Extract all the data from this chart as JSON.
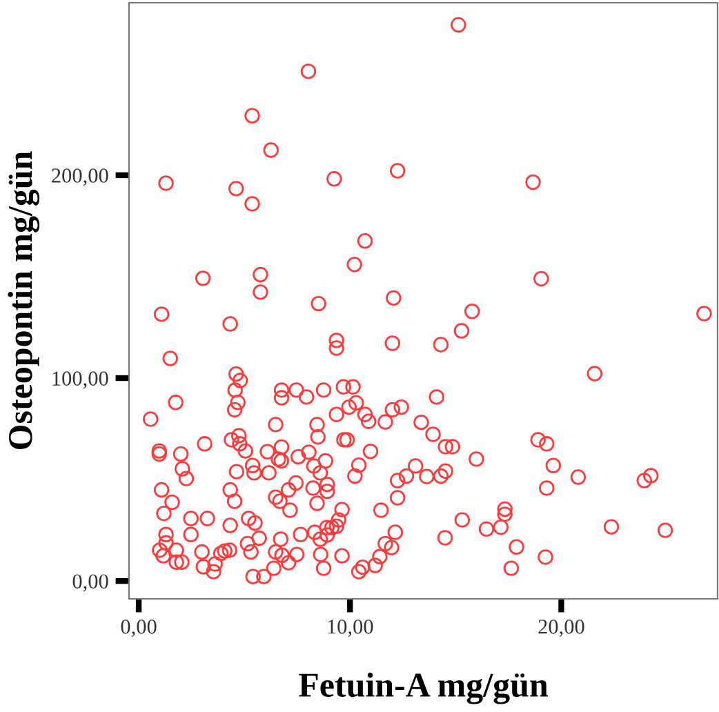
{
  "chart_data": {
    "type": "scatter",
    "xlabel": "Fetuin-A mg/gün",
    "ylabel": "Osteopontin mg/gün",
    "xlim": [
      -0.46,
      27.4
    ],
    "ylim": [
      -8.8,
      285
    ],
    "xticks": [
      {
        "value": 0,
        "label": "0,00"
      },
      {
        "value": 10,
        "label": "10,00"
      },
      {
        "value": 20,
        "label": "20,00"
      }
    ],
    "yticks": [
      {
        "value": 0,
        "label": "0,00"
      },
      {
        "value": 100,
        "label": "100,00"
      },
      {
        "value": 200,
        "label": "200,00"
      }
    ],
    "grid": false,
    "marker": "circle",
    "series": [
      {
        "color": "#ff3b3b",
        "x": [
          15.13,
          8.03,
          5.37,
          6.26,
          1.29,
          4.61,
          5.37,
          9.25,
          12.25,
          10.71,
          10.21,
          3.04,
          5.76,
          5.76,
          12.06,
          8.51,
          18.66,
          19.05,
          1.08,
          4.33,
          9.36,
          9.36,
          12.01,
          1.49,
          4.61,
          4.8,
          4.56,
          1.75,
          4.69,
          4.54,
          0.56,
          6.76,
          7.46,
          6.76,
          7.94,
          8.75,
          9.69,
          10.14,
          10.29,
          9.95,
          9.36,
          10.71,
          10.88,
          11.67,
          12.01,
          12.43,
          13.37,
          6.48,
          8.44,
          8.48,
          4.74,
          4.39,
          4.78,
          5.05,
          3.12,
          0.97,
          0.97,
          1.99,
          2.06,
          2.25,
          6.09,
          6.76,
          6.61,
          6.75,
          7.55,
          8.05,
          8.84,
          9.71,
          9.86,
          10.97,
          10.42,
          10.23,
          5.39,
          5.46,
          6.16,
          4.63,
          8.29,
          8.59,
          1.08,
          1.58,
          1.19,
          4.33,
          4.54,
          7.44,
          7.09,
          6.48,
          6.68,
          7.16,
          8.25,
          8.92,
          8.92,
          8.44,
          9.62,
          12.25,
          12.67,
          13.1,
          12.25,
          11.47,
          2.47,
          3.25,
          5.2,
          5.5,
          4.33,
          2.47,
          1.29,
          1.29,
          0.99,
          1.16,
          1.78,
          1.78,
          2.04,
          2.99,
          3.06,
          3.61,
          3.54,
          3.89,
          4.07,
          4.3,
          5.15,
          5.31,
          5.7,
          5.41,
          5.92,
          6.39,
          6.48,
          6.72,
          6.78,
          7.09,
          7.48,
          7.66,
          8.33,
          8.59,
          8.9,
          8.92,
          9.14,
          9.36,
          9.46,
          8.61,
          8.75,
          9.62,
          10.42,
          10.6,
          11.19,
          11.41,
          11.67,
          11.97,
          12.14,
          15.78,
          15.28,
          14.3,
          26.76,
          21.58,
          14.1,
          13.93,
          14.52,
          14.85,
          15.98,
          13.63,
          14.3,
          14.52,
          18.9,
          19.31,
          19.62,
          20.8,
          19.31,
          23.93,
          24.24,
          17.33,
          17.33,
          17.14,
          16.46,
          15.31,
          14.5,
          17.88,
          17.63,
          19.25,
          22.37,
          24.92
        ],
        "values": [
          274.1,
          251.2,
          229.3,
          212.4,
          196.1,
          193.4,
          185.9,
          198.2,
          202.2,
          167.6,
          156.0,
          149.2,
          151.0,
          142.4,
          139.5,
          136.7,
          196.6,
          149.0,
          131.5,
          126.7,
          118.6,
          114.8,
          117.2,
          109.7,
          102.0,
          98.8,
          94.1,
          88.0,
          88.0,
          84.4,
          79.8,
          94.1,
          94.1,
          90.3,
          90.7,
          94.1,
          95.7,
          95.7,
          87.8,
          85.7,
          82.1,
          82.1,
          78.7,
          78.4,
          84.4,
          85.7,
          78.2,
          77.1,
          77.1,
          71.0,
          71.6,
          69.6,
          67.6,
          64.1,
          67.6,
          64.1,
          62.6,
          62.6,
          55.3,
          50.5,
          63.7,
          66.0,
          60.1,
          59.2,
          61.2,
          63.5,
          59.2,
          69.6,
          69.6,
          63.9,
          57.1,
          51.7,
          56.9,
          53.3,
          53.3,
          53.9,
          56.7,
          53.3,
          44.9,
          38.8,
          33.3,
          44.9,
          39.3,
          48.3,
          44.9,
          41.3,
          39.3,
          34.9,
          45.8,
          47.6,
          44.2,
          38.3,
          35.2,
          49.5,
          51.7,
          56.7,
          41.0,
          34.9,
          30.8,
          30.8,
          30.8,
          28.6,
          27.4,
          22.9,
          22.9,
          18.8,
          15.2,
          12.4,
          15.2,
          9.3,
          9.3,
          14.3,
          7.0,
          8.4,
          4.6,
          13.6,
          14.8,
          15.2,
          18.4,
          14.3,
          21.1,
          2.2,
          2.2,
          6.3,
          14.3,
          20.6,
          12.7,
          9.0,
          13.1,
          22.9,
          24.0,
          20.6,
          26.3,
          22.7,
          26.3,
          27.0,
          30.1,
          13.1,
          6.3,
          12.4,
          4.6,
          6.8,
          7.7,
          12.0,
          18.4,
          16.5,
          24.0,
          132.9,
          123.3,
          116.5,
          131.8,
          102.2,
          90.7,
          72.3,
          66.2,
          66.2,
          60.1,
          51.5,
          51.7,
          54.2,
          69.6,
          67.6,
          56.9,
          51.2,
          45.8,
          49.5,
          51.9,
          35.4,
          32.9,
          26.5,
          25.6,
          30.1,
          21.3,
          16.8,
          6.3,
          11.8,
          26.7,
          25.0
        ]
      }
    ]
  }
}
